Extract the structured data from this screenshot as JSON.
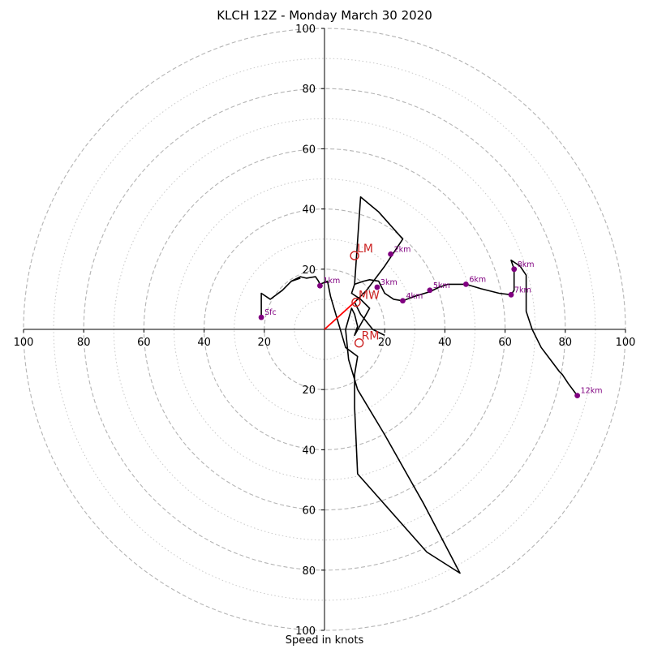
{
  "chart_data": {
    "type": "hodograph",
    "title": "KLCH 12Z - Monday March 30 2020",
    "xlabel": "Speed in knots",
    "ylabel": "",
    "xlim": [
      -100,
      100
    ],
    "ylim": [
      -100,
      100
    ],
    "rings": {
      "dashed": [
        20,
        40,
        60,
        80,
        100
      ],
      "dotted": [
        10,
        30,
        50,
        70,
        90
      ]
    },
    "x_ticks": [
      {
        "value": -100,
        "label": "100"
      },
      {
        "value": -80,
        "label": "80"
      },
      {
        "value": -60,
        "label": "60"
      },
      {
        "value": -40,
        "label": "40"
      },
      {
        "value": -20,
        "label": "20"
      },
      {
        "value": 20,
        "label": "20"
      },
      {
        "value": 40,
        "label": "40"
      },
      {
        "value": 60,
        "label": "60"
      },
      {
        "value": 80,
        "label": "80"
      },
      {
        "value": 100,
        "label": "100"
      }
    ],
    "y_ticks": [
      {
        "value": 100,
        "label": "100"
      },
      {
        "value": 80,
        "label": "80"
      },
      {
        "value": 60,
        "label": "60"
      },
      {
        "value": 40,
        "label": "40"
      },
      {
        "value": 20,
        "label": "20"
      },
      {
        "value": -20,
        "label": "20"
      },
      {
        "value": -40,
        "label": "40"
      },
      {
        "value": -60,
        "label": "60"
      },
      {
        "value": -80,
        "label": "80"
      },
      {
        "value": -100,
        "label": "100"
      }
    ],
    "wind_trace": {
      "color": "#000000",
      "points": [
        [
          -21,
          4
        ],
        [
          -21,
          12
        ],
        [
          -18,
          10
        ],
        [
          -14,
          13
        ],
        [
          -11,
          16
        ],
        [
          -8,
          17.5
        ],
        [
          -6,
          17
        ],
        [
          -3,
          17.5
        ],
        [
          -2,
          16
        ],
        [
          -1.5,
          15
        ],
        [
          1,
          16
        ],
        [
          2,
          11
        ],
        [
          7,
          -6
        ],
        [
          11,
          -9
        ],
        [
          10,
          -15
        ],
        [
          10,
          -26
        ],
        [
          11,
          -48
        ],
        [
          34,
          -74
        ],
        [
          45,
          -81
        ],
        [
          33,
          -58
        ],
        [
          20,
          -35
        ],
        [
          11,
          -20
        ],
        [
          8,
          -10
        ],
        [
          7,
          0
        ],
        [
          9,
          7
        ],
        [
          10,
          5
        ],
        [
          11,
          1
        ],
        [
          10,
          -2
        ],
        [
          15,
          7
        ],
        [
          12,
          10
        ],
        [
          9,
          12
        ],
        [
          10,
          15
        ],
        [
          13,
          16
        ],
        [
          15,
          16.5
        ],
        [
          18,
          16
        ],
        [
          19,
          14
        ],
        [
          20,
          12
        ],
        [
          23,
          10
        ],
        [
          26,
          9.5
        ],
        [
          30,
          11
        ],
        [
          35,
          12.5
        ],
        [
          38,
          14
        ],
        [
          41,
          15
        ],
        [
          47,
          15
        ],
        [
          52,
          13.5
        ],
        [
          58,
          12
        ],
        [
          62,
          11.5
        ],
        [
          63,
          13
        ],
        [
          63,
          20
        ],
        [
          62,
          23
        ],
        [
          65,
          21
        ],
        [
          67,
          18
        ],
        [
          67,
          6
        ],
        [
          69,
          0
        ],
        [
          72,
          -6
        ],
        [
          75,
          -10
        ],
        [
          78,
          -14
        ],
        [
          79,
          -15
        ],
        [
          81,
          -18
        ],
        [
          84,
          -22
        ]
      ],
      "return_leg": [
        [
          -11,
          16
        ],
        [
          -8,
          17
        ]
      ],
      "upper_loop": [
        [
          10,
          15
        ],
        [
          12,
          44
        ],
        [
          18,
          39
        ],
        [
          26,
          30
        ],
        [
          20,
          21
        ],
        [
          14,
          13
        ],
        [
          10,
          9
        ],
        [
          12,
          5
        ],
        [
          16,
          0
        ],
        [
          20,
          -2
        ]
      ]
    },
    "markers": [
      {
        "label": "Sfc",
        "u": -21,
        "v": 4
      },
      {
        "label": "1km",
        "u": -1.5,
        "v": 14.5
      },
      {
        "label": "2km",
        "u": 22,
        "v": 25
      },
      {
        "label": "3km",
        "u": 17.5,
        "v": 14
      },
      {
        "label": "4km",
        "u": 26,
        "v": 9.5
      },
      {
        "label": "5km",
        "u": 35,
        "v": 13
      },
      {
        "label": "6km",
        "u": 47,
        "v": 15
      },
      {
        "label": "7km",
        "u": 62,
        "v": 11.5
      },
      {
        "label": "8km",
        "u": 63,
        "v": 20
      },
      {
        "label": "12km",
        "u": 84,
        "v": -22
      }
    ],
    "marker_color": "#800080",
    "storm_motion": [
      {
        "label": "LM",
        "u": 10,
        "v": 24.5
      },
      {
        "label": "MW",
        "u": 10.5,
        "v": 9
      },
      {
        "label": "RM",
        "u": 11.5,
        "v": -4.5
      }
    ],
    "storm_color": "#cc2222",
    "shear_vector": {
      "from": [
        0,
        0
      ],
      "to": [
        10.5,
        9.5
      ],
      "color": "#ff0000"
    }
  }
}
